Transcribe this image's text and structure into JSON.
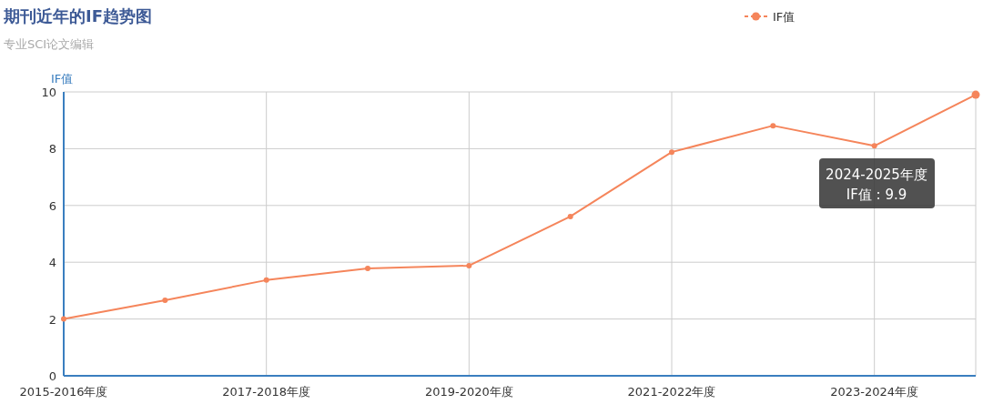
{
  "chart_data": {
    "type": "line",
    "title": "期刊近年的IF趋势图",
    "subtitle": "专业SCI论文编辑",
    "ylabel": "IF值",
    "categories": [
      "2015-2016年度",
      null,
      "2017-2018年度",
      null,
      "2019-2020年度",
      null,
      "2021-2022年度",
      null,
      "2023-2024年度",
      null
    ],
    "series": [
      {
        "name": "IF值",
        "color": "#f5855b",
        "values": [
          2.0,
          2.66,
          3.37,
          3.78,
          3.88,
          5.61,
          7.88,
          8.81,
          8.1,
          9.9
        ]
      }
    ],
    "ylim": [
      0,
      10
    ],
    "yticks": [
      0,
      2,
      4,
      6,
      8,
      10
    ],
    "grid": true,
    "legend": "top right",
    "marker": "circle",
    "line_style": "solid",
    "annotations": [
      "2024-2025年度\nIF值 : 9.9"
    ]
  }
}
